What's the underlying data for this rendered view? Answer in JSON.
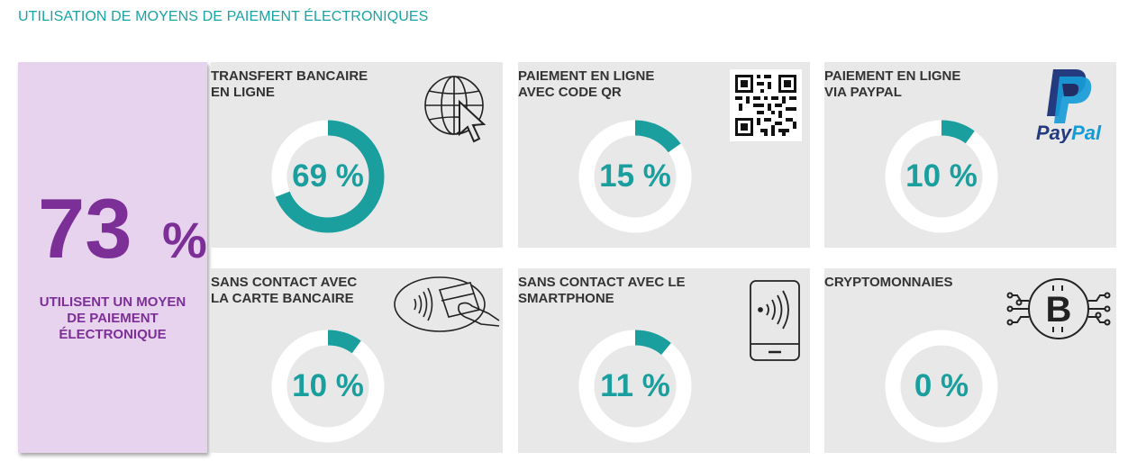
{
  "title": "UTILISATION DE MOYENS DE PAIEMENT ÉLECTRONIQUES",
  "summary": {
    "value": "73",
    "unit": "%",
    "label_lines": [
      "UTILISENT UN MOYEN",
      "DE PAIEMENT",
      "ÉLECTRONIQUE"
    ]
  },
  "colors": {
    "accent": "#1a9e9e",
    "ring_background": "#ffffff",
    "card_background": "#e8e8e8",
    "summary_background": "#e8d3ee",
    "summary_text": "#7b2f97",
    "title_text": "#1aa3a3"
  },
  "cards": [
    {
      "title_lines": [
        "TRANSFERT BANCAIRE",
        "EN LIGNE"
      ],
      "value": 69,
      "value_label": "69 %",
      "icon": "globe-cursor-icon"
    },
    {
      "title_lines": [
        "PAIEMENT EN LIGNE",
        "AVEC CODE QR"
      ],
      "value": 15,
      "value_label": "15 %",
      "icon": "qr-code-icon"
    },
    {
      "title_lines": [
        "PAIEMENT EN LIGNE",
        "VIA PAYPAL"
      ],
      "value": 10,
      "value_label": "10 %",
      "icon": "paypal-logo-icon",
      "logo_text": "PayPal"
    },
    {
      "title_lines": [
        "SANS CONTACT AVEC",
        "LA CARTE BANCAIRE"
      ],
      "value": 10,
      "value_label": "10 %",
      "icon": "contactless-card-icon"
    },
    {
      "title_lines": [
        "SANS CONTACT AVEC LE",
        "SMARTPHONE"
      ],
      "value": 11,
      "value_label": "11 %",
      "icon": "contactless-phone-icon"
    },
    {
      "title_lines": [
        "CRYPTOMONNAIES"
      ],
      "value": 0,
      "value_label": "0 %",
      "icon": "bitcoin-icon"
    }
  ],
  "chart_data": {
    "type": "pie",
    "variant": "donut",
    "categories": [
      "TRANSFERT BANCAIRE EN LIGNE",
      "PAIEMENT EN LIGNE AVEC CODE QR",
      "PAIEMENT EN LIGNE VIA PAYPAL",
      "SANS CONTACT AVEC LA CARTE BANCAIRE",
      "SANS CONTACT AVEC LE SMARTPHONE",
      "CRYPTOMONNAIES"
    ],
    "values": [
      69,
      15,
      10,
      10,
      11,
      0
    ],
    "total_value": 73,
    "unit": "%",
    "title": "UTILISATION DE MOYENS DE PAIEMENT ÉLECTRONIQUES"
  }
}
